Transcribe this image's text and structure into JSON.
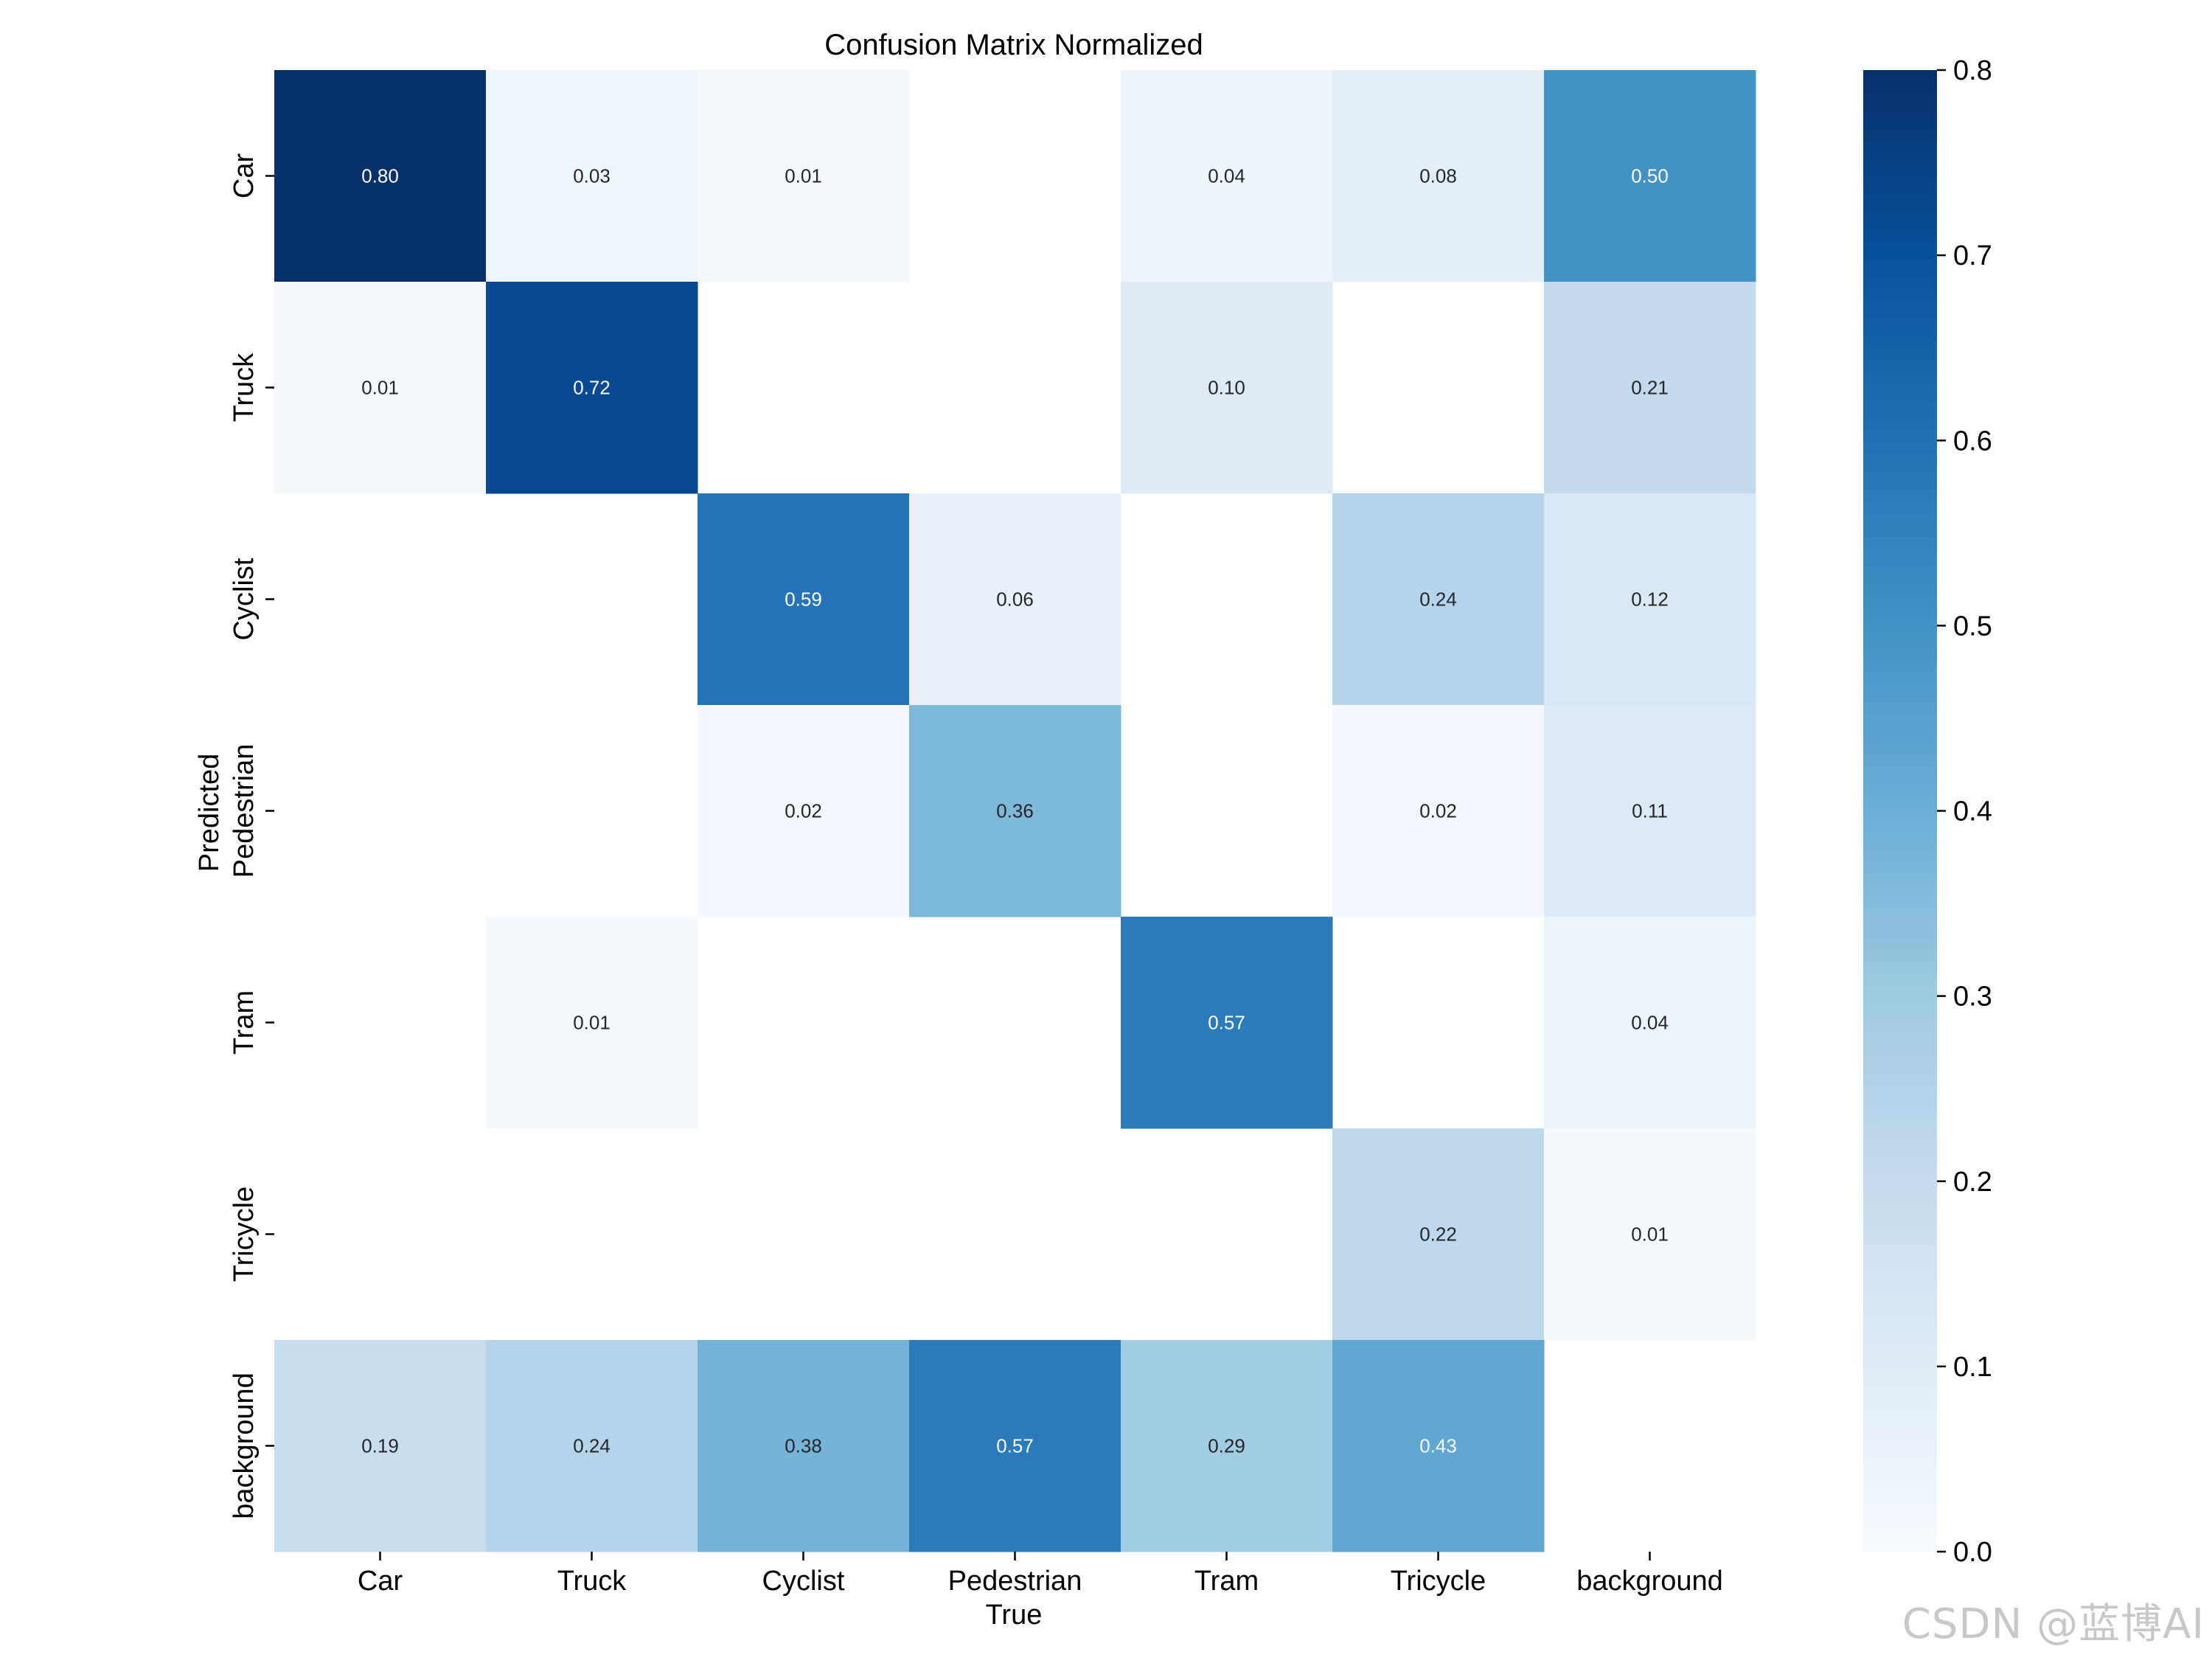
{
  "chart_data": {
    "type": "heatmap",
    "title": "Confusion Matrix Normalized",
    "xlabel": "True",
    "ylabel": "Predicted",
    "x_categories": [
      "Car",
      "Truck",
      "Cyclist",
      "Pedestrian",
      "Tram",
      "Tricycle",
      "background"
    ],
    "y_categories": [
      "Car",
      "Truck",
      "Cyclist",
      "Pedestrian",
      "Tram",
      "Tricycle",
      "background"
    ],
    "values": [
      [
        0.8,
        0.03,
        0.01,
        null,
        0.04,
        0.08,
        0.5
      ],
      [
        0.01,
        0.72,
        null,
        null,
        0.1,
        null,
        0.21
      ],
      [
        null,
        null,
        0.59,
        0.06,
        null,
        0.24,
        0.12
      ],
      [
        null,
        null,
        0.02,
        0.36,
        null,
        0.02,
        0.11
      ],
      [
        null,
        0.01,
        null,
        null,
        0.57,
        null,
        0.04
      ],
      [
        null,
        null,
        null,
        null,
        null,
        0.22,
        0.01
      ],
      [
        0.19,
        0.24,
        0.38,
        0.57,
        0.29,
        0.43,
        null
      ]
    ],
    "cell_labels": [
      [
        "0.80",
        "0.03",
        "0.01",
        "",
        "0.04",
        "0.08",
        "0.50"
      ],
      [
        "0.01",
        "0.72",
        "",
        "",
        "0.10",
        "",
        "0.21"
      ],
      [
        "",
        "",
        "0.59",
        "0.06",
        "",
        "0.24",
        "0.12"
      ],
      [
        "",
        "",
        "0.02",
        "0.36",
        "",
        "0.02",
        "0.11"
      ],
      [
        "",
        "0.01",
        "",
        "",
        "0.57",
        "",
        "0.04"
      ],
      [
        "",
        "",
        "",
        "",
        "",
        "0.22",
        "0.01"
      ],
      [
        "0.19",
        "0.24",
        "0.38",
        "0.57",
        "0.29",
        "0.43",
        ""
      ]
    ],
    "colorbar": {
      "vmin": 0.0,
      "vmax": 0.8,
      "ticks": [
        0.0,
        0.1,
        0.2,
        0.3,
        0.4,
        0.5,
        0.6,
        0.7,
        0.8
      ],
      "tick_labels": [
        "0.0",
        "0.1",
        "0.2",
        "0.3",
        "0.4",
        "0.5",
        "0.6",
        "0.7",
        "0.8"
      ],
      "colormap": "Blues"
    }
  },
  "watermark": "CSDN @蓝博AI"
}
